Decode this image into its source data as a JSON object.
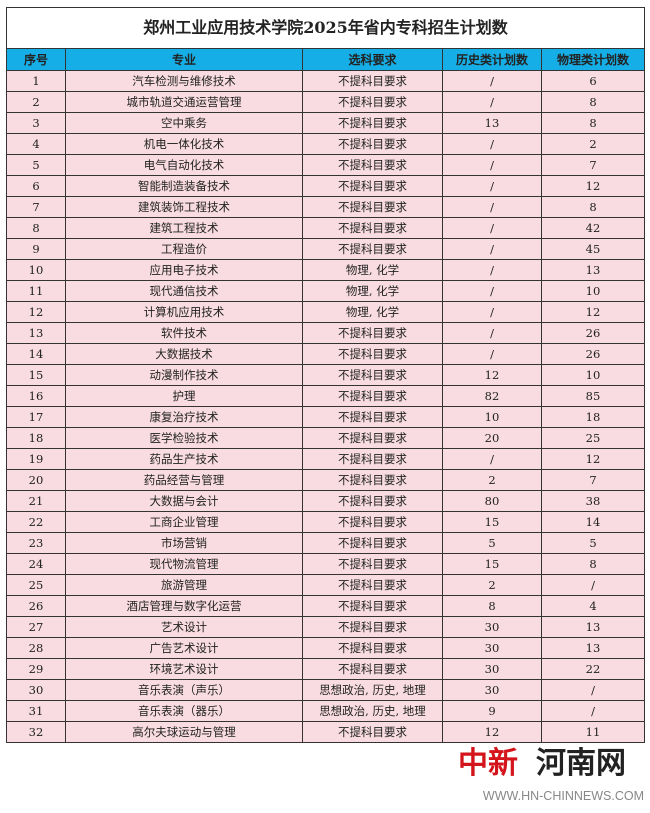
{
  "title": "郑州工业应用技术学院2025年省内专科招生计划数",
  "headers": [
    "序号",
    "专业",
    "选科要求",
    "历史类计划数",
    "物理类计划数"
  ],
  "rows": [
    [
      "1",
      "汽车检测与维修技术",
      "不提科目要求",
      "/",
      "6"
    ],
    [
      "2",
      "城市轨道交通运营管理",
      "不提科目要求",
      "/",
      "8"
    ],
    [
      "3",
      "空中乘务",
      "不提科目要求",
      "13",
      "8"
    ],
    [
      "4",
      "机电一体化技术",
      "不提科目要求",
      "/",
      "2"
    ],
    [
      "5",
      "电气自动化技术",
      "不提科目要求",
      "/",
      "7"
    ],
    [
      "6",
      "智能制造装备技术",
      "不提科目要求",
      "/",
      "12"
    ],
    [
      "7",
      "建筑装饰工程技术",
      "不提科目要求",
      "/",
      "8"
    ],
    [
      "8",
      "建筑工程技术",
      "不提科目要求",
      "/",
      "42"
    ],
    [
      "9",
      "工程造价",
      "不提科目要求",
      "/",
      "45"
    ],
    [
      "10",
      "应用电子技术",
      "物理, 化学",
      "/",
      "13"
    ],
    [
      "11",
      "现代通信技术",
      "物理, 化学",
      "/",
      "10"
    ],
    [
      "12",
      "计算机应用技术",
      "物理, 化学",
      "/",
      "12"
    ],
    [
      "13",
      "软件技术",
      "不提科目要求",
      "/",
      "26"
    ],
    [
      "14",
      "大数据技术",
      "不提科目要求",
      "/",
      "26"
    ],
    [
      "15",
      "动漫制作技术",
      "不提科目要求",
      "12",
      "10"
    ],
    [
      "16",
      "护理",
      "不提科目要求",
      "82",
      "85"
    ],
    [
      "17",
      "康复治疗技术",
      "不提科目要求",
      "10",
      "18"
    ],
    [
      "18",
      "医学检验技术",
      "不提科目要求",
      "20",
      "25"
    ],
    [
      "19",
      "药品生产技术",
      "不提科目要求",
      "/",
      "12"
    ],
    [
      "20",
      "药品经营与管理",
      "不提科目要求",
      "2",
      "7"
    ],
    [
      "21",
      "大数据与会计",
      "不提科目要求",
      "80",
      "38"
    ],
    [
      "22",
      "工商企业管理",
      "不提科目要求",
      "15",
      "14"
    ],
    [
      "23",
      "市场营销",
      "不提科目要求",
      "5",
      "5"
    ],
    [
      "24",
      "现代物流管理",
      "不提科目要求",
      "15",
      "8"
    ],
    [
      "25",
      "旅游管理",
      "不提科目要求",
      "2",
      "/"
    ],
    [
      "26",
      "酒店管理与数字化运营",
      "不提科目要求",
      "8",
      "4"
    ],
    [
      "27",
      "艺术设计",
      "不提科目要求",
      "30",
      "13"
    ],
    [
      "28",
      "广告艺术设计",
      "不提科目要求",
      "30",
      "13"
    ],
    [
      "29",
      "环境艺术设计",
      "不提科目要求",
      "30",
      "22"
    ],
    [
      "30",
      "音乐表演（声乐）",
      "思想政治, 历史, 地理",
      "30",
      "/"
    ],
    [
      "31",
      "音乐表演（器乐）",
      "思想政治, 历史, 地理",
      "9",
      "/"
    ],
    [
      "32",
      "高尔夫球运动与管理",
      "不提科目要求",
      "12",
      "11"
    ]
  ],
  "watermark": {
    "left": "中新",
    "right": "河南网",
    "url": "WWW.HN-CHINNEWS.COM"
  },
  "colors": {
    "header_bg": "#16aee6",
    "row_bg": "#f8dce1",
    "border": "#333333"
  }
}
